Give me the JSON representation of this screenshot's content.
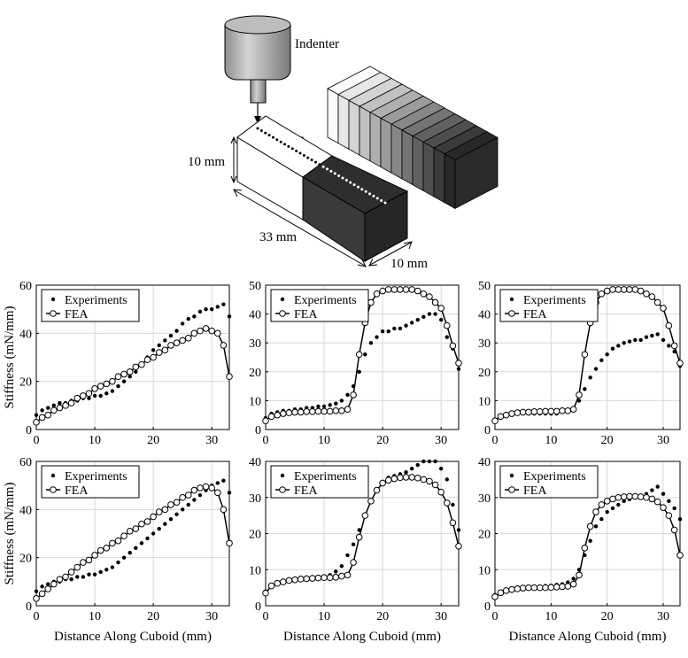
{
  "schematic": {
    "indenter_label": "Indenter",
    "height_label": "10 mm",
    "length_label": "33 mm",
    "depth_label": "10 mm"
  },
  "legend": {
    "experiments": "Experiments",
    "fea": "FEA"
  },
  "colors": {
    "axis": "#000000",
    "grid": "#d9d9d9",
    "marker": "#000000"
  },
  "chart_data": [
    {
      "type": "scatter",
      "panel": "row1-col1",
      "xlabel": "",
      "ylabel": "Stiffness (mN/mm)",
      "xlim": [
        0,
        33
      ],
      "ylim": [
        0,
        60
      ],
      "xticks": [
        0,
        10,
        20,
        30
      ],
      "yticks": [
        0,
        20,
        40,
        60
      ],
      "grid": true,
      "legend_position": "top-left",
      "series": [
        {
          "name": "Experiments",
          "style": "dots",
          "x": [
            0,
            1,
            2,
            3,
            4,
            5,
            6,
            7,
            8,
            9,
            10,
            11,
            12,
            13,
            14,
            15,
            16,
            17,
            18,
            19,
            20,
            21,
            22,
            23,
            24,
            25,
            26,
            27,
            28,
            29,
            30,
            31,
            32,
            33
          ],
          "y": [
            6,
            8,
            9,
            10,
            11,
            11,
            12,
            12,
            13,
            13,
            14,
            14,
            15,
            16,
            18,
            20,
            22,
            24,
            27,
            30,
            33,
            35,
            37,
            39,
            41,
            44,
            46,
            47,
            49,
            50,
            50,
            51,
            52,
            47
          ]
        },
        {
          "name": "FEA",
          "style": "line-circles",
          "x": [
            0,
            1,
            2,
            3,
            4,
            5,
            6,
            7,
            8,
            9,
            10,
            11,
            12,
            13,
            14,
            15,
            16,
            17,
            18,
            19,
            20,
            21,
            22,
            23,
            24,
            25,
            26,
            27,
            28,
            29,
            30,
            31,
            32,
            33
          ],
          "y": [
            3,
            5,
            6,
            8,
            9,
            10,
            11,
            13,
            14,
            15,
            17,
            18,
            19,
            20,
            22,
            23,
            24,
            26,
            27,
            29,
            30,
            32,
            33,
            35,
            36,
            37,
            38,
            40,
            41,
            42,
            41,
            40,
            35,
            22
          ]
        }
      ]
    },
    {
      "type": "scatter",
      "panel": "row1-col2",
      "xlabel": "",
      "ylabel": "",
      "xlim": [
        0,
        33
      ],
      "ylim": [
        0,
        50
      ],
      "xticks": [
        0,
        10,
        20,
        30
      ],
      "yticks": [
        0,
        10,
        20,
        30,
        40,
        50
      ],
      "grid": true,
      "legend_position": "top-left",
      "series": [
        {
          "name": "Experiments",
          "style": "dots",
          "x": [
            0,
            1,
            2,
            3,
            4,
            5,
            6,
            7,
            8,
            9,
            10,
            11,
            12,
            13,
            14,
            15,
            16,
            17,
            18,
            19,
            20,
            21,
            22,
            23,
            24,
            25,
            26,
            27,
            28,
            29,
            30,
            31,
            32,
            33
          ],
          "y": [
            4,
            5.5,
            6,
            6.5,
            6.5,
            7,
            7,
            7.5,
            7.5,
            8,
            8,
            8.5,
            9,
            10,
            12,
            15,
            20,
            26,
            30,
            32,
            34,
            34,
            35,
            35,
            36,
            37,
            38,
            39,
            40,
            40,
            38,
            32,
            28,
            21
          ]
        },
        {
          "name": "FEA",
          "style": "line-circles",
          "x": [
            0,
            1,
            2,
            3,
            4,
            5,
            6,
            7,
            8,
            9,
            10,
            11,
            12,
            13,
            14,
            15,
            16,
            17,
            18,
            19,
            20,
            21,
            22,
            23,
            24,
            25,
            26,
            27,
            28,
            29,
            30,
            31,
            32,
            33
          ],
          "y": [
            3,
            4.5,
            5,
            5.5,
            5.8,
            6,
            6,
            6.2,
            6.2,
            6.3,
            6.3,
            6.3,
            6.5,
            6.5,
            7,
            12,
            26,
            37,
            44,
            47,
            48,
            48.5,
            48.5,
            48.5,
            48.5,
            48.5,
            48,
            47,
            46,
            44,
            42,
            36,
            29,
            23
          ]
        }
      ]
    },
    {
      "type": "scatter",
      "panel": "row1-col3",
      "xlabel": "",
      "ylabel": "",
      "xlim": [
        0,
        33
      ],
      "ylim": [
        0,
        50
      ],
      "xticks": [
        0,
        10,
        20,
        30
      ],
      "yticks": [
        0,
        10,
        20,
        30,
        40,
        50
      ],
      "grid": true,
      "legend_position": "top-left",
      "series": [
        {
          "name": "Experiments",
          "style": "dots",
          "x": [
            0,
            1,
            2,
            3,
            4,
            5,
            6,
            7,
            8,
            9,
            10,
            11,
            12,
            13,
            14,
            15,
            16,
            17,
            18,
            19,
            20,
            21,
            22,
            23,
            24,
            25,
            26,
            27,
            28,
            29,
            30,
            31,
            32,
            33
          ],
          "y": [
            3,
            4,
            5,
            5,
            5.5,
            5.5,
            5.5,
            5.5,
            5.5,
            5.5,
            5.5,
            5.5,
            6,
            6,
            7,
            10,
            14,
            18,
            21,
            24,
            26,
            28,
            29,
            30,
            30.5,
            31,
            31,
            32,
            32.5,
            33,
            31,
            29,
            27,
            22
          ]
        },
        {
          "name": "FEA",
          "style": "line-circles",
          "x": [
            0,
            1,
            2,
            3,
            4,
            5,
            6,
            7,
            8,
            9,
            10,
            11,
            12,
            13,
            14,
            15,
            16,
            17,
            18,
            19,
            20,
            21,
            22,
            23,
            24,
            25,
            26,
            27,
            28,
            29,
            30,
            31,
            32,
            33
          ],
          "y": [
            3,
            4.5,
            5,
            5.5,
            5.8,
            6,
            6,
            6.2,
            6.2,
            6.3,
            6.3,
            6.3,
            6.5,
            6.5,
            7,
            12,
            26,
            37,
            44,
            47,
            48,
            48.5,
            48.5,
            48.5,
            48.5,
            48.5,
            48,
            47,
            46,
            44,
            42,
            36,
            29,
            23
          ]
        }
      ]
    },
    {
      "type": "scatter",
      "panel": "row2-col1",
      "xlabel": "Distance Along Cuboid (mm)",
      "ylabel": "Stiffness (mN/mm)",
      "xlim": [
        0,
        33
      ],
      "ylim": [
        0,
        60
      ],
      "xticks": [
        0,
        10,
        20,
        30
      ],
      "yticks": [
        0,
        20,
        40,
        60
      ],
      "grid": true,
      "legend_position": "top-left",
      "series": [
        {
          "name": "Experiments",
          "style": "dots",
          "x": [
            0,
            1,
            2,
            3,
            4,
            5,
            6,
            7,
            8,
            9,
            10,
            11,
            12,
            13,
            14,
            15,
            16,
            17,
            18,
            19,
            20,
            21,
            22,
            23,
            24,
            25,
            26,
            27,
            28,
            29,
            30,
            31,
            32,
            33
          ],
          "y": [
            6,
            8,
            9,
            10,
            10,
            11,
            11,
            12,
            12,
            13,
            13,
            14,
            15,
            16,
            18,
            20,
            22,
            24,
            26,
            28,
            30,
            32,
            34,
            36,
            38,
            40,
            42,
            44,
            46,
            48,
            50,
            51,
            52,
            47
          ]
        },
        {
          "name": "FEA",
          "style": "line-circles",
          "x": [
            0,
            1,
            2,
            3,
            4,
            5,
            6,
            7,
            8,
            9,
            10,
            11,
            12,
            13,
            14,
            15,
            16,
            17,
            18,
            19,
            20,
            21,
            22,
            23,
            24,
            25,
            26,
            27,
            28,
            29,
            30,
            31,
            32,
            33
          ],
          "y": [
            3,
            5,
            7,
            9,
            11,
            12,
            14,
            16,
            18,
            19,
            21,
            23,
            24,
            26,
            27,
            29,
            31,
            32,
            34,
            35,
            37,
            39,
            40,
            42,
            43,
            45,
            46,
            48,
            49,
            49.5,
            49,
            47,
            40,
            26
          ]
        }
      ]
    },
    {
      "type": "scatter",
      "panel": "row2-col2",
      "xlabel": "Distance Along Cuboid (mm)",
      "ylabel": "",
      "xlim": [
        0,
        33
      ],
      "ylim": [
        0,
        40
      ],
      "xticks": [
        0,
        10,
        20,
        30
      ],
      "yticks": [
        0,
        10,
        20,
        30,
        40
      ],
      "grid": true,
      "legend_position": "top-left",
      "series": [
        {
          "name": "Experiments",
          "style": "dots",
          "x": [
            0,
            1,
            2,
            3,
            4,
            5,
            6,
            7,
            8,
            9,
            10,
            11,
            12,
            13,
            14,
            15,
            16,
            17,
            18,
            19,
            20,
            21,
            22,
            23,
            24,
            25,
            26,
            27,
            28,
            29,
            30,
            31,
            32,
            33
          ],
          "y": [
            4,
            5.5,
            6,
            6.5,
            6.8,
            7,
            7.2,
            7.5,
            7.8,
            8,
            8.2,
            8.5,
            9.5,
            11,
            14,
            17,
            21,
            25,
            29,
            32,
            34,
            35.5,
            36,
            36.5,
            37,
            38,
            39,
            40,
            40,
            40,
            38,
            35,
            28,
            21
          ]
        },
        {
          "name": "FEA",
          "style": "line-circles",
          "x": [
            0,
            1,
            2,
            3,
            4,
            5,
            6,
            7,
            8,
            9,
            10,
            11,
            12,
            13,
            14,
            15,
            16,
            17,
            18,
            19,
            20,
            21,
            22,
            23,
            24,
            25,
            26,
            27,
            28,
            29,
            30,
            31,
            32,
            33
          ],
          "y": [
            3.5,
            5.5,
            6.2,
            6.6,
            7,
            7.2,
            7.4,
            7.5,
            7.6,
            7.7,
            7.8,
            7.8,
            7.9,
            8.2,
            8.5,
            12,
            19,
            25,
            29,
            32,
            34,
            34.8,
            35.2,
            35.5,
            35.6,
            35.6,
            35.4,
            35,
            34.5,
            33.5,
            31.5,
            28.5,
            23,
            16.5
          ]
        }
      ]
    },
    {
      "type": "scatter",
      "panel": "row2-col3",
      "xlabel": "Distance Along Cuboid (mm)",
      "ylabel": "",
      "xlim": [
        0,
        33
      ],
      "ylim": [
        0,
        40
      ],
      "xticks": [
        0,
        10,
        20,
        30
      ],
      "yticks": [
        0,
        10,
        20,
        30,
        40
      ],
      "grid": true,
      "legend_position": "top-left",
      "series": [
        {
          "name": "Experiments",
          "style": "dots",
          "x": [
            0,
            1,
            2,
            3,
            4,
            5,
            6,
            7,
            8,
            9,
            10,
            11,
            12,
            13,
            14,
            15,
            16,
            17,
            18,
            19,
            20,
            21,
            22,
            23,
            24,
            25,
            26,
            27,
            28,
            29,
            30,
            31,
            32,
            33
          ],
          "y": [
            3,
            4,
            4.5,
            4.8,
            5,
            5,
            5.2,
            5.2,
            5.3,
            5.5,
            5.6,
            5.8,
            6,
            6.5,
            7.5,
            10,
            14,
            18,
            22,
            24,
            26,
            27,
            28,
            29,
            29.5,
            30,
            30.5,
            31,
            32,
            33,
            31,
            29,
            27,
            24
          ]
        },
        {
          "name": "FEA",
          "style": "line-circles",
          "x": [
            0,
            1,
            2,
            3,
            4,
            5,
            6,
            7,
            8,
            9,
            10,
            11,
            12,
            13,
            14,
            15,
            16,
            17,
            18,
            19,
            20,
            21,
            22,
            23,
            24,
            25,
            26,
            27,
            28,
            29,
            30,
            31,
            32,
            33
          ],
          "y": [
            2.5,
            3.6,
            4.2,
            4.5,
            4.7,
            4.9,
            5,
            5,
            5,
            5,
            5.1,
            5.2,
            5.3,
            5.4,
            6,
            8.5,
            16,
            22,
            26,
            28,
            29,
            29.6,
            30,
            30.2,
            30.3,
            30.3,
            30.2,
            30,
            29.6,
            28.8,
            27.2,
            25,
            21,
            14
          ]
        }
      ]
    }
  ]
}
